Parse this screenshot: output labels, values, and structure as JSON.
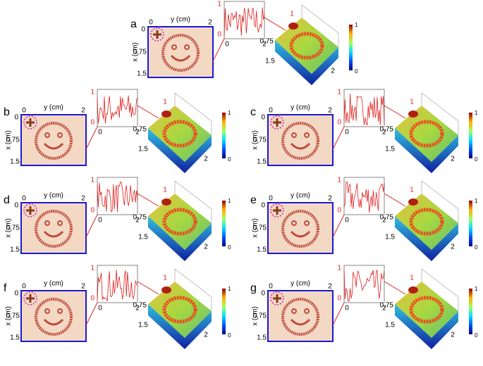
{
  "panels": [
    {
      "letter": "a",
      "y_axis": "y (cm)",
      "y_ticks": [
        "0",
        "2"
      ],
      "x_axis": "x (cm)",
      "x_ticks": [
        "0",
        "0.75",
        "1.5"
      ],
      "profile_y_ticks": [
        "1",
        "0"
      ],
      "profile_x_ticks": [
        "0",
        "2"
      ],
      "surface_peak": "1",
      "surface_ticks": [
        "0.75",
        "1.5",
        "2"
      ],
      "colorbar_ticks": [
        "1",
        "0"
      ]
    },
    {
      "letter": "b",
      "y_axis": "y (cm)",
      "y_ticks": [
        "0",
        "2"
      ],
      "x_axis": "x (cm)",
      "x_ticks": [
        "0",
        "0.75",
        "1.5"
      ],
      "profile_y_ticks": [
        "1",
        "0"
      ],
      "profile_x_ticks": [
        "0",
        "2"
      ],
      "surface_peak": "1",
      "surface_ticks": [
        "0.75",
        "1.5",
        "2"
      ],
      "colorbar_ticks": [
        "1",
        "0"
      ]
    },
    {
      "letter": "c",
      "y_axis": "y (cm)",
      "y_ticks": [
        "0",
        "2"
      ],
      "x_axis": "x (cm)",
      "x_ticks": [
        "0",
        "0.75",
        "1.5"
      ],
      "profile_y_ticks": [
        "1",
        "0"
      ],
      "profile_x_ticks": [
        "0",
        "2"
      ],
      "surface_peak": "1",
      "surface_ticks": [
        "0.75",
        "1.5",
        "2"
      ],
      "colorbar_ticks": [
        "1",
        "0"
      ]
    },
    {
      "letter": "d",
      "y_axis": "y (cm)",
      "y_ticks": [
        "0",
        "2"
      ],
      "x_axis": "x (cm)",
      "x_ticks": [
        "0",
        "0.75",
        "1.5"
      ],
      "profile_y_ticks": [
        "1",
        "0"
      ],
      "profile_x_ticks": [
        "0",
        "2"
      ],
      "surface_peak": "1",
      "surface_ticks": [
        "0.75",
        "1.5",
        "2"
      ],
      "colorbar_ticks": [
        "1",
        "0"
      ]
    },
    {
      "letter": "e",
      "y_axis": "y (cm)",
      "y_ticks": [
        "0",
        "2"
      ],
      "x_axis": "x (cm)",
      "x_ticks": [
        "0",
        "0.75",
        "1.5"
      ],
      "profile_y_ticks": [
        "1",
        "0"
      ],
      "profile_x_ticks": [
        "0",
        "2"
      ],
      "surface_peak": "1",
      "surface_ticks": [
        "0.75",
        "1.5",
        "2"
      ],
      "colorbar_ticks": [
        "1",
        "0"
      ]
    },
    {
      "letter": "f",
      "y_axis": "y (cm)",
      "y_ticks": [
        "0",
        "2"
      ],
      "x_axis": "x (cm)",
      "x_ticks": [
        "0",
        "0.75",
        "1.5"
      ],
      "profile_y_ticks": [
        "1",
        "0"
      ],
      "profile_x_ticks": [
        "0",
        "2"
      ],
      "surface_peak": "1",
      "surface_ticks": [
        "0.75",
        "1.5",
        "2"
      ],
      "colorbar_ticks": [
        "1",
        "0"
      ]
    },
    {
      "letter": "g",
      "y_axis": "y (cm)",
      "y_ticks": [
        "0",
        "2"
      ],
      "x_axis": "x (cm)",
      "x_ticks": [
        "0",
        "0.75",
        "1.5"
      ],
      "profile_y_ticks": [
        "1",
        "0"
      ],
      "profile_x_ticks": [
        "0",
        "2"
      ],
      "surface_peak": "1",
      "surface_ticks": [
        "0.75",
        "1.5",
        "2"
      ],
      "colorbar_ticks": [
        "1",
        "0"
      ]
    }
  ]
}
